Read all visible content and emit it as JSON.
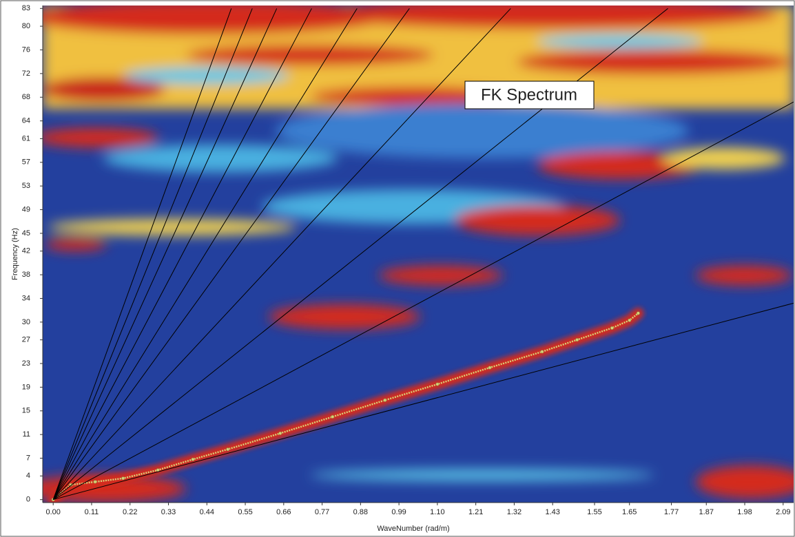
{
  "chart_data": {
    "type": "line",
    "title": "FK Spectrum",
    "x_label": "WaveNumber (rad/m)",
    "y_label": "Frequency (Hz)",
    "xlim": [
      -0.03,
      2.12
    ],
    "ylim": [
      -0.5,
      83.5
    ],
    "xticks": [
      {
        "value": 0,
        "label": "0.00"
      },
      0.11,
      0.22,
      0.33,
      0.44,
      0.55,
      0.66,
      0.77,
      0.88,
      0.99,
      {
        "value": 1.1,
        "label": "1.10"
      },
      1.21,
      1.32,
      1.43,
      1.55,
      1.65,
      1.77,
      1.87,
      1.98,
      2.09
    ],
    "yticks": [
      0,
      4,
      7,
      11,
      15,
      19,
      23,
      27,
      30,
      34,
      38,
      42,
      45,
      49,
      53,
      57,
      61,
      64,
      68,
      72,
      76,
      80,
      83
    ],
    "series": [
      {
        "color": "#d8cf78",
        "marker": true,
        "x": [
          0,
          0.05,
          0.12,
          0.2,
          0.3,
          0.4,
          0.5,
          0.65,
          0.8,
          0.95,
          1.1,
          1.25,
          1.4,
          1.5,
          1.6,
          1.65,
          1.675
        ],
        "y": [
          0,
          2.5,
          3,
          3.6,
          5,
          6.8,
          8.5,
          11.2,
          14,
          16.8,
          19.5,
          22.3,
          25,
          27,
          29,
          30.3,
          31.5
        ]
      },
      {
        "color": "#000000",
        "x": [
          0,
          0.51
        ],
        "y": [
          0,
          83
        ]
      },
      {
        "color": "#000000",
        "x": [
          0,
          0.57
        ],
        "y": [
          0,
          83
        ]
      },
      {
        "color": "#000000",
        "x": [
          0,
          0.64
        ],
        "y": [
          0,
          83
        ]
      },
      {
        "color": "#000000",
        "x": [
          0,
          0.74
        ],
        "y": [
          0,
          83
        ]
      },
      {
        "color": "#000000",
        "x": [
          0,
          0.87
        ],
        "y": [
          0,
          83
        ]
      },
      {
        "color": "#000000",
        "x": [
          0,
          1.02
        ],
        "y": [
          0,
          83
        ]
      },
      {
        "color": "#000000",
        "x": [
          0,
          1.31
        ],
        "y": [
          0,
          83
        ]
      },
      {
        "color": "#000000",
        "x": [
          0,
          1.76
        ],
        "y": [
          0,
          83
        ]
      },
      {
        "color": "#000000",
        "x": [
          0,
          2.12
        ],
        "y": [
          0,
          67.2
        ]
      },
      {
        "color": "#000000",
        "x": [
          0,
          2.12
        ],
        "y": [
          0,
          33.2
        ]
      }
    ]
  }
}
